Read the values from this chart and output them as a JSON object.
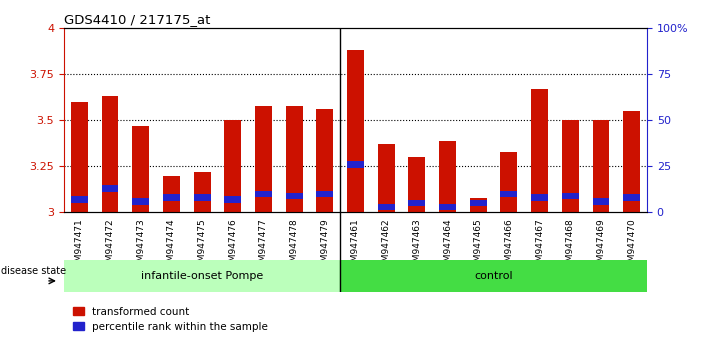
{
  "title": "GDS4410 / 217175_at",
  "samples": [
    "GSM947471",
    "GSM947472",
    "GSM947473",
    "GSM947474",
    "GSM947475",
    "GSM947476",
    "GSM947477",
    "GSM947478",
    "GSM947479",
    "GSM947461",
    "GSM947462",
    "GSM947463",
    "GSM947464",
    "GSM947465",
    "GSM947466",
    "GSM947467",
    "GSM947468",
    "GSM947469",
    "GSM947470"
  ],
  "transformed_count": [
    3.6,
    3.63,
    3.47,
    3.2,
    3.22,
    3.5,
    3.58,
    3.58,
    3.56,
    3.88,
    3.37,
    3.3,
    3.39,
    3.08,
    3.33,
    3.67,
    3.5,
    3.5,
    3.55
  ],
  "percentile_values": [
    3.07,
    3.13,
    3.06,
    3.08,
    3.08,
    3.07,
    3.1,
    3.09,
    3.1,
    3.26,
    3.03,
    3.05,
    3.03,
    3.05,
    3.1,
    3.08,
    3.09,
    3.06,
    3.08
  ],
  "bar_color": "#cc1100",
  "percentile_color": "#2222cc",
  "ymin": 3.0,
  "ymax": 4.0,
  "yticks": [
    3.0,
    3.25,
    3.5,
    3.75,
    4.0
  ],
  "ytick_labels": [
    "3",
    "3.25",
    "3.5",
    "3.75",
    "4"
  ],
  "grid_values": [
    3.25,
    3.5,
    3.75
  ],
  "group1_label": "infantile-onset Pompe",
  "group2_label": "control",
  "group1_color": "#bbffbb",
  "group2_color": "#44dd44",
  "disease_state_label": "disease state",
  "legend_red": "transformed count",
  "legend_blue": "percentile rank within the sample",
  "n_group1": 9,
  "n_group2": 10,
  "bg_color": "#d8d8d8"
}
